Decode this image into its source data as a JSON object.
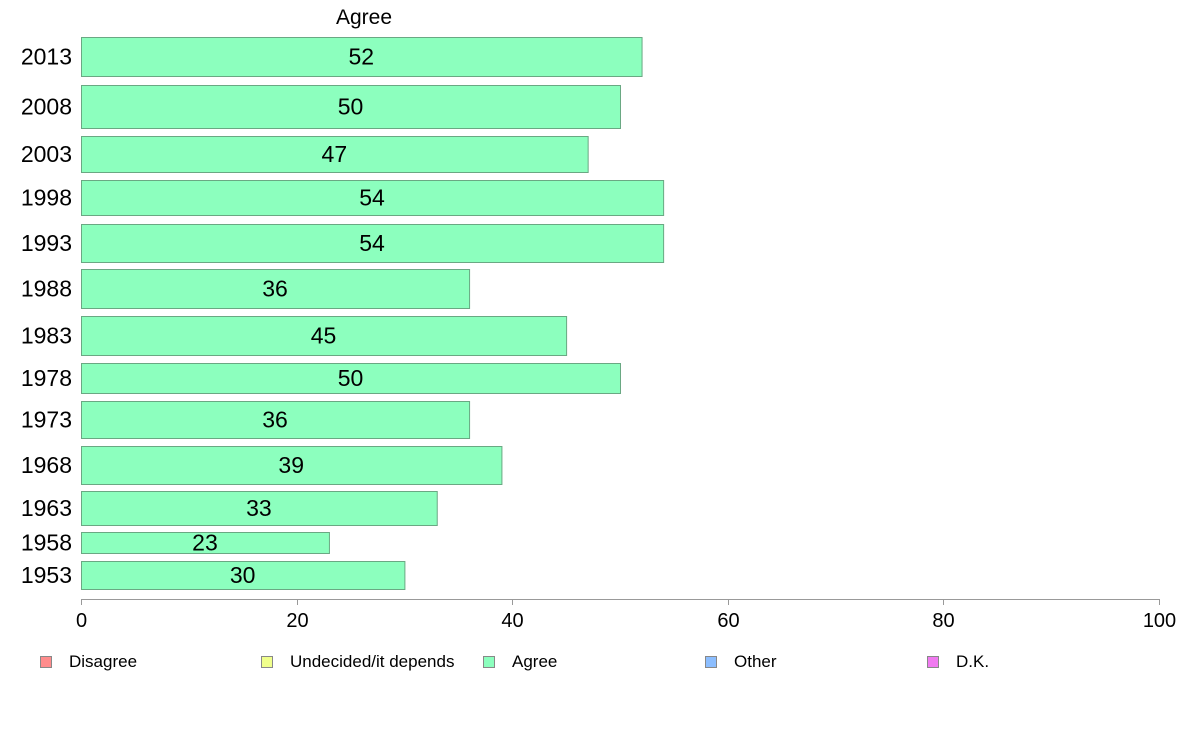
{
  "chart_data": {
    "type": "bar",
    "orientation": "horizontal",
    "title": "Agree",
    "categories": [
      "2013",
      "2008",
      "2003",
      "1998",
      "1993",
      "1988",
      "1983",
      "1978",
      "1973",
      "1968",
      "1963",
      "1958",
      "1953"
    ],
    "series": [
      {
        "name": "Agree",
        "color": "#8cffbe",
        "values": [
          52,
          50,
          47,
          54,
          54,
          36,
          45,
          50,
          36,
          39,
          33,
          23,
          30
        ]
      }
    ],
    "data_labels": [
      "52",
      "50",
      "47",
      "54",
      "54",
      "36",
      "45",
      "50",
      "36",
      "39",
      "33",
      "23",
      "30"
    ],
    "xlim": [
      0,
      100
    ],
    "x_ticks": [
      0,
      20,
      40,
      60,
      80,
      100
    ],
    "x_tick_labels": [
      "0",
      "20",
      "40",
      "60",
      "80",
      "100"
    ],
    "grid": false,
    "legend_position": "bottom",
    "legend": [
      {
        "label": "Disagree",
        "color": "#ff8c8c"
      },
      {
        "label": "Undecided/it depends",
        "color": "#f0ff8c"
      },
      {
        "label": "Agree",
        "color": "#8cffbe"
      },
      {
        "label": "Other",
        "color": "#8cbeff"
      },
      {
        "label": "D.K.",
        "color": "#f07af0"
      }
    ]
  }
}
